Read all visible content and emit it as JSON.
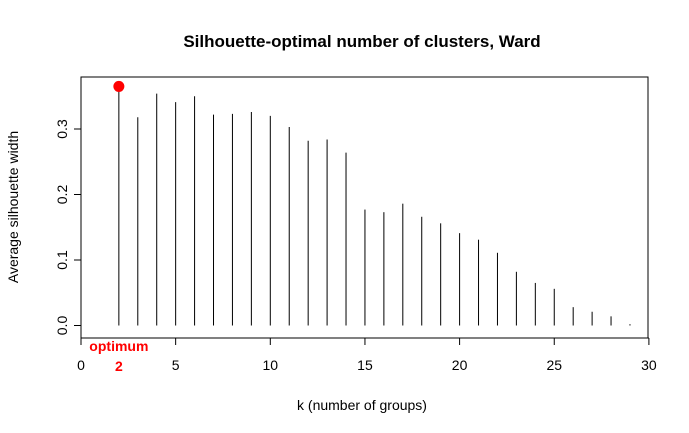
{
  "chart_data": {
    "type": "bar",
    "title": "Silhouette-optimal number of clusters, Ward",
    "xlabel": "k (number of groups)",
    "ylabel": "Average silhouette width",
    "xlim": [
      0,
      30
    ],
    "ylim": [
      0,
      0.37
    ],
    "x_ticks": [
      "0",
      "5",
      "10",
      "15",
      "20",
      "25",
      "30"
    ],
    "y_ticks": [
      "0.0",
      "0.1",
      "0.2",
      "0.3"
    ],
    "x": [
      1,
      2,
      3,
      4,
      5,
      6,
      7,
      8,
      9,
      10,
      11,
      12,
      13,
      14,
      15,
      16,
      17,
      18,
      19,
      20,
      21,
      22,
      23,
      24,
      25,
      26,
      27,
      28,
      29
    ],
    "values": [
      0.0,
      0.365,
      0.318,
      0.354,
      0.341,
      0.35,
      0.322,
      0.323,
      0.326,
      0.32,
      0.303,
      0.282,
      0.284,
      0.264,
      0.177,
      0.173,
      0.186,
      0.166,
      0.156,
      0.141,
      0.131,
      0.111,
      0.082,
      0.065,
      0.056,
      0.028,
      0.021,
      0.014,
      0.002
    ],
    "grid": false,
    "optimum": {
      "k": 2,
      "k_label": "2",
      "label": "optimum",
      "color": "#ff0000"
    },
    "bar_color": "#000000"
  }
}
